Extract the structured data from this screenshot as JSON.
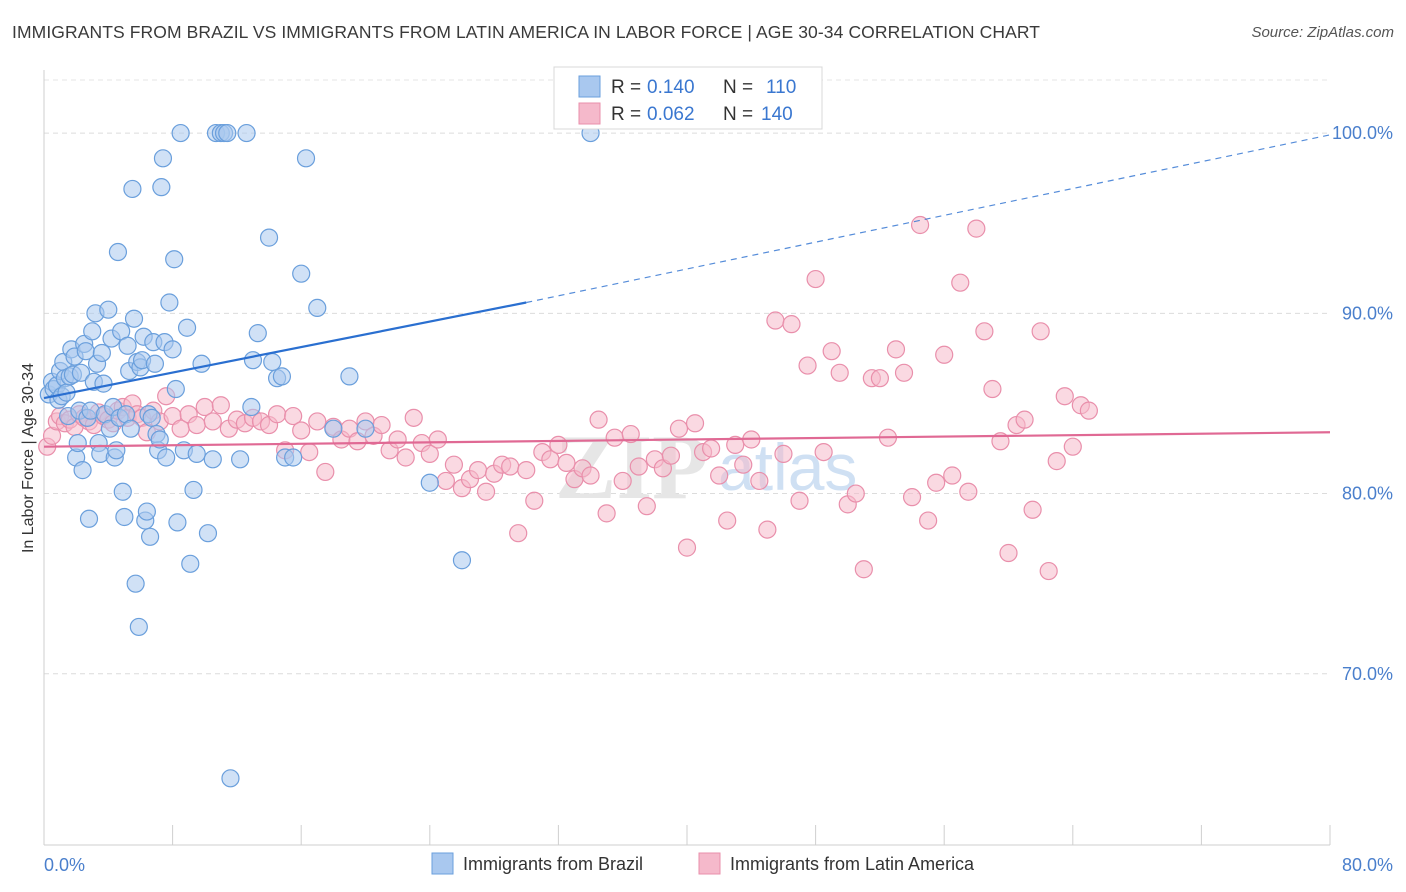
{
  "chart_data": {
    "type": "scatter",
    "title": "IMMIGRANTS FROM BRAZIL VS IMMIGRANTS FROM LATIN AMERICA IN LABOR FORCE | AGE 30-34 CORRELATION CHART",
    "source": "Source: ZipAtlas.com",
    "watermark": "ZIPatlas",
    "xlabel": "",
    "ylabel": "In Labor Force | Age 30-34",
    "xlim": [
      0,
      80
    ],
    "ylim": [
      60.5,
      103.5
    ],
    "x_tick_labels": [
      "0.0%",
      "80.0%"
    ],
    "y_ticks": [
      70,
      80,
      90,
      100
    ],
    "y_tick_labels": [
      "70.0%",
      "80.0%",
      "90.0%",
      "100.0%"
    ],
    "grid": true,
    "legend": {
      "placement": "top-center",
      "rows": [
        {
          "r_label": "R =",
          "r_value": "0.140",
          "n_label": "N =",
          "n_value": "110"
        },
        {
          "r_label": "R =",
          "r_value": "0.062",
          "n_label": "N =",
          "n_value": "140"
        }
      ]
    },
    "colors": {
      "brazil_fill": "#a9c8ef",
      "brazil_stroke": "#6a9fdc",
      "brazil_line": "#2a6fd0",
      "latam_fill": "#f5b9cb",
      "latam_stroke": "#e98fab",
      "latam_line": "#e06994",
      "value_text": "#3a77d0",
      "tick_text": "#4a7fcc"
    },
    "series": [
      {
        "name": "Immigrants from Brazil",
        "R": 0.14,
        "N": 110,
        "trend": {
          "x0": 0,
          "y0": 85.3,
          "x1": 30,
          "y1": 90.6,
          "dash_to_x": 80,
          "dash_to_y": 99.9
        },
        "points": [
          [
            0.3,
            85.5
          ],
          [
            0.5,
            86.2
          ],
          [
            0.6,
            85.8
          ],
          [
            0.8,
            86.0
          ],
          [
            0.9,
            85.2
          ],
          [
            1.0,
            86.8
          ],
          [
            1.1,
            85.4
          ],
          [
            1.2,
            87.3
          ],
          [
            1.3,
            86.4
          ],
          [
            1.4,
            85.6
          ],
          [
            1.5,
            84.3
          ],
          [
            1.6,
            86.5
          ],
          [
            1.7,
            88.0
          ],
          [
            1.8,
            86.6
          ],
          [
            1.9,
            87.6
          ],
          [
            2.0,
            82.0
          ],
          [
            2.1,
            82.8
          ],
          [
            2.2,
            84.6
          ],
          [
            2.3,
            86.7
          ],
          [
            2.4,
            81.3
          ],
          [
            2.5,
            88.3
          ],
          [
            2.6,
            87.9
          ],
          [
            2.7,
            84.2
          ],
          [
            2.8,
            78.6
          ],
          [
            2.9,
            84.6
          ],
          [
            3.0,
            89.0
          ],
          [
            3.1,
            86.2
          ],
          [
            3.2,
            90.0
          ],
          [
            3.3,
            87.2
          ],
          [
            3.4,
            82.8
          ],
          [
            3.5,
            82.2
          ],
          [
            3.6,
            87.8
          ],
          [
            3.7,
            86.1
          ],
          [
            3.8,
            84.4
          ],
          [
            4.0,
            90.2
          ],
          [
            4.1,
            83.6
          ],
          [
            4.2,
            88.6
          ],
          [
            4.3,
            84.8
          ],
          [
            4.4,
            82.0
          ],
          [
            4.5,
            82.4
          ],
          [
            4.6,
            93.4
          ],
          [
            4.7,
            84.2
          ],
          [
            4.8,
            89.0
          ],
          [
            4.9,
            80.1
          ],
          [
            5.0,
            78.7
          ],
          [
            5.1,
            84.4
          ],
          [
            5.2,
            88.2
          ],
          [
            5.3,
            86.8
          ],
          [
            5.4,
            83.6
          ],
          [
            5.5,
            96.9
          ],
          [
            5.6,
            89.7
          ],
          [
            5.7,
            75.0
          ],
          [
            5.8,
            87.3
          ],
          [
            5.9,
            72.6
          ],
          [
            6.0,
            87.0
          ],
          [
            6.1,
            87.4
          ],
          [
            6.2,
            88.7
          ],
          [
            6.3,
            78.5
          ],
          [
            6.4,
            79.0
          ],
          [
            6.5,
            84.4
          ],
          [
            6.6,
            77.6
          ],
          [
            6.7,
            84.2
          ],
          [
            6.8,
            88.4
          ],
          [
            6.9,
            87.2
          ],
          [
            7.0,
            83.3
          ],
          [
            7.1,
            82.4
          ],
          [
            7.2,
            83.0
          ],
          [
            7.3,
            97.0
          ],
          [
            7.4,
            98.6
          ],
          [
            7.5,
            88.4
          ],
          [
            7.6,
            82.0
          ],
          [
            7.8,
            90.6
          ],
          [
            8.0,
            88.0
          ],
          [
            8.1,
            93.0
          ],
          [
            8.2,
            85.8
          ],
          [
            8.3,
            78.4
          ],
          [
            8.5,
            100.0
          ],
          [
            8.7,
            82.4
          ],
          [
            8.9,
            89.2
          ],
          [
            9.1,
            76.1
          ],
          [
            9.3,
            80.2
          ],
          [
            9.5,
            82.2
          ],
          [
            9.8,
            87.2
          ],
          [
            10.2,
            77.8
          ],
          [
            10.5,
            81.9
          ],
          [
            10.7,
            100.0
          ],
          [
            11.0,
            100.0
          ],
          [
            11.2,
            100.0
          ],
          [
            11.4,
            100.0
          ],
          [
            11.6,
            64.2
          ],
          [
            12.2,
            81.9
          ],
          [
            12.6,
            100.0
          ],
          [
            12.9,
            84.8
          ],
          [
            13.0,
            87.4
          ],
          [
            13.3,
            88.9
          ],
          [
            14.0,
            94.2
          ],
          [
            14.2,
            87.3
          ],
          [
            14.5,
            86.4
          ],
          [
            14.8,
            86.5
          ],
          [
            15.0,
            82.0
          ],
          [
            15.5,
            82.0
          ],
          [
            16.0,
            92.2
          ],
          [
            16.3,
            98.6
          ],
          [
            17.0,
            90.3
          ],
          [
            18.0,
            83.6
          ],
          [
            19.0,
            86.5
          ],
          [
            20.0,
            83.6
          ],
          [
            24.0,
            80.6
          ],
          [
            26.0,
            76.3
          ],
          [
            34.0,
            100.0
          ]
        ]
      },
      {
        "name": "Immigrants from Latin America",
        "R": 0.062,
        "N": 140,
        "trend": {
          "x0": 0,
          "y0": 82.6,
          "x1": 80,
          "y1": 83.4
        },
        "points": [
          [
            0.2,
            82.6
          ],
          [
            0.5,
            83.2
          ],
          [
            0.8,
            84.0
          ],
          [
            1.0,
            84.3
          ],
          [
            1.3,
            83.9
          ],
          [
            1.6,
            84.1
          ],
          [
            1.9,
            83.7
          ],
          [
            2.2,
            84.4
          ],
          [
            2.5,
            84.2
          ],
          [
            2.8,
            84.0
          ],
          [
            3.1,
            83.8
          ],
          [
            3.4,
            84.5
          ],
          [
            3.7,
            84.3
          ],
          [
            4.0,
            84.1
          ],
          [
            4.3,
            83.9
          ],
          [
            4.6,
            84.6
          ],
          [
            4.9,
            84.8
          ],
          [
            5.2,
            84.2
          ],
          [
            5.5,
            85.0
          ],
          [
            5.8,
            84.4
          ],
          [
            6.1,
            84.2
          ],
          [
            6.4,
            83.4
          ],
          [
            6.8,
            84.6
          ],
          [
            7.2,
            84.0
          ],
          [
            7.6,
            85.4
          ],
          [
            8.0,
            84.3
          ],
          [
            8.5,
            83.6
          ],
          [
            9.0,
            84.4
          ],
          [
            9.5,
            83.8
          ],
          [
            10.0,
            84.8
          ],
          [
            10.5,
            84.0
          ],
          [
            11.0,
            84.9
          ],
          [
            11.5,
            83.6
          ],
          [
            12.0,
            84.1
          ],
          [
            12.5,
            83.9
          ],
          [
            13.0,
            84.2
          ],
          [
            13.5,
            84.0
          ],
          [
            14.0,
            83.8
          ],
          [
            14.5,
            84.4
          ],
          [
            15.0,
            82.4
          ],
          [
            15.5,
            84.3
          ],
          [
            16.0,
            83.5
          ],
          [
            16.5,
            82.3
          ],
          [
            17.0,
            84.0
          ],
          [
            17.5,
            81.2
          ],
          [
            18.0,
            83.7
          ],
          [
            18.5,
            83.0
          ],
          [
            19.0,
            83.6
          ],
          [
            19.5,
            82.9
          ],
          [
            20.0,
            84.0
          ],
          [
            20.5,
            83.2
          ],
          [
            21.0,
            83.8
          ],
          [
            21.5,
            82.4
          ],
          [
            22.0,
            83.0
          ],
          [
            22.5,
            82.0
          ],
          [
            23.0,
            84.2
          ],
          [
            23.5,
            82.8
          ],
          [
            24.0,
            82.2
          ],
          [
            24.5,
            83.0
          ],
          [
            25.0,
            80.7
          ],
          [
            25.5,
            81.6
          ],
          [
            26.0,
            80.3
          ],
          [
            26.5,
            80.8
          ],
          [
            27.0,
            81.3
          ],
          [
            27.5,
            80.1
          ],
          [
            28.0,
            81.1
          ],
          [
            28.5,
            81.6
          ],
          [
            29.0,
            81.5
          ],
          [
            29.5,
            77.8
          ],
          [
            30.0,
            81.3
          ],
          [
            30.5,
            79.6
          ],
          [
            31.0,
            82.3
          ],
          [
            31.5,
            81.9
          ],
          [
            32.0,
            82.7
          ],
          [
            32.5,
            81.7
          ],
          [
            33.0,
            80.8
          ],
          [
            33.5,
            81.4
          ],
          [
            34.0,
            81.0
          ],
          [
            34.5,
            84.1
          ],
          [
            35.0,
            78.9
          ],
          [
            35.5,
            83.1
          ],
          [
            36.0,
            80.7
          ],
          [
            36.5,
            83.3
          ],
          [
            37.0,
            81.5
          ],
          [
            37.5,
            79.3
          ],
          [
            38.0,
            81.9
          ],
          [
            38.5,
            81.4
          ],
          [
            39.0,
            82.1
          ],
          [
            39.5,
            83.6
          ],
          [
            40.0,
            77.0
          ],
          [
            40.5,
            83.9
          ],
          [
            41.0,
            82.3
          ],
          [
            41.5,
            82.5
          ],
          [
            42.0,
            81.0
          ],
          [
            42.5,
            78.5
          ],
          [
            43.0,
            82.7
          ],
          [
            43.5,
            81.6
          ],
          [
            44.0,
            83.0
          ],
          [
            44.5,
            80.7
          ],
          [
            45.0,
            78.0
          ],
          [
            45.5,
            89.6
          ],
          [
            46.0,
            82.2
          ],
          [
            46.5,
            89.4
          ],
          [
            47.0,
            79.6
          ],
          [
            47.5,
            87.1
          ],
          [
            48.0,
            91.9
          ],
          [
            48.5,
            82.3
          ],
          [
            49.0,
            87.9
          ],
          [
            49.5,
            86.7
          ],
          [
            50.0,
            79.4
          ],
          [
            50.5,
            80.0
          ],
          [
            51.0,
            75.8
          ],
          [
            51.5,
            86.4
          ],
          [
            52.0,
            86.4
          ],
          [
            52.5,
            83.1
          ],
          [
            53.0,
            88.0
          ],
          [
            53.5,
            86.7
          ],
          [
            54.0,
            79.8
          ],
          [
            54.5,
            94.9
          ],
          [
            55.0,
            78.5
          ],
          [
            55.5,
            80.6
          ],
          [
            56.0,
            87.7
          ],
          [
            56.5,
            81.0
          ],
          [
            57.0,
            91.7
          ],
          [
            57.5,
            80.1
          ],
          [
            58.0,
            94.7
          ],
          [
            58.5,
            89.0
          ],
          [
            59.0,
            85.8
          ],
          [
            59.5,
            82.9
          ],
          [
            60.0,
            76.7
          ],
          [
            60.5,
            83.8
          ],
          [
            61.0,
            84.1
          ],
          [
            61.5,
            79.1
          ],
          [
            62.0,
            89.0
          ],
          [
            62.5,
            75.7
          ],
          [
            63.0,
            81.8
          ],
          [
            63.5,
            85.4
          ],
          [
            64.0,
            82.6
          ],
          [
            64.5,
            84.9
          ],
          [
            65.0,
            84.6
          ]
        ]
      }
    ]
  }
}
